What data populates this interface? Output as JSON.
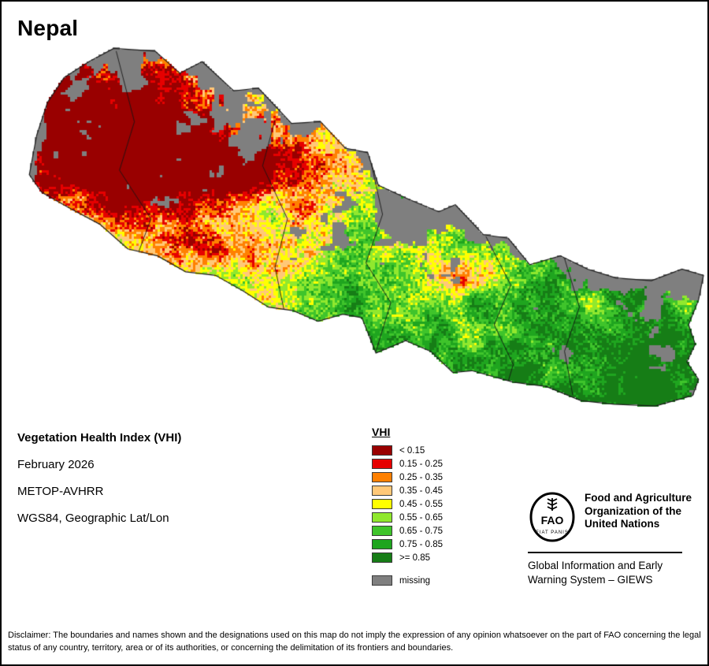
{
  "page": {
    "title": "Nepal"
  },
  "info": {
    "heading": "Vegetation Health Index (VHI)",
    "period": "February 2026",
    "sensor": "METOP-AVHRR",
    "projection": "WGS84, Geographic Lat/Lon"
  },
  "legend": {
    "title": "VHI",
    "bins": [
      0.15,
      0.25,
      0.35,
      0.45,
      0.55,
      0.65,
      0.75,
      0.85
    ],
    "items": [
      {
        "label": "< 0.15",
        "color": "#990000"
      },
      {
        "label": "0.15 - 0.25",
        "color": "#e60000"
      },
      {
        "label": "0.25 - 0.35",
        "color": "#ff8000"
      },
      {
        "label": "0.35 - 0.45",
        "color": "#ffc878"
      },
      {
        "label": "0.45 - 0.55",
        "color": "#ffff00"
      },
      {
        "label": "0.55 - 0.65",
        "color": "#90e82e"
      },
      {
        "label": "0.65 - 0.75",
        "color": "#3fc42b"
      },
      {
        "label": "0.75 - 0.85",
        "color": "#1fa51f"
      },
      {
        "label": ">= 0.85",
        "color": "#167d16"
      },
      {
        "label": "missing",
        "color": "#7f7f7f",
        "gap": true
      }
    ]
  },
  "org": {
    "logo_text": "FAO",
    "logo_motto": "FIAT PANIS",
    "name_lines": [
      "Food and Agriculture",
      "Organization of the",
      "United Nations"
    ],
    "program_lines": [
      "Global Information and Early",
      "Warning System – GIEWS"
    ]
  },
  "disclaimer": "Disclaimer: The boundaries and names shown and the designations used on this map do not imply the expression of any opinion whatsoever on the part of FAO concerning the legal status of any country, territory, area or of its authorities, or concerning the delimitation of its frontiers and boundaries."
}
